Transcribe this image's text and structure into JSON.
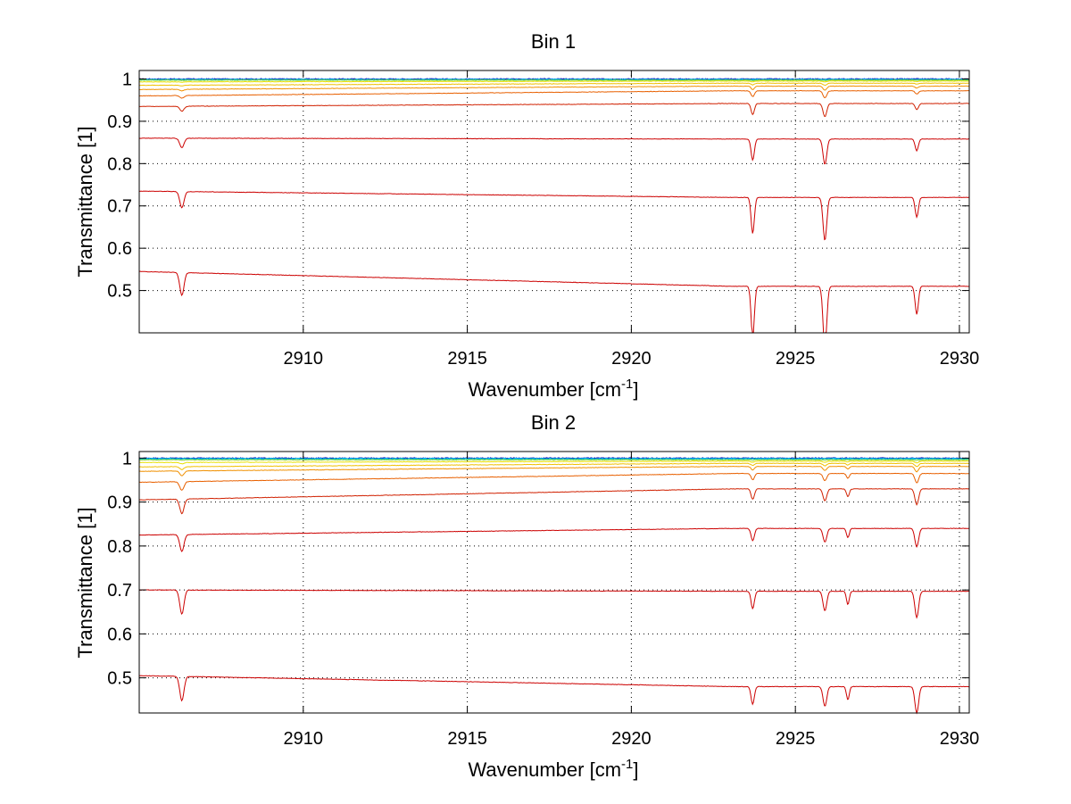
{
  "chart_data": [
    {
      "type": "line",
      "title": "Bin 1",
      "xlabel": "Wavenumber [cm",
      "xlabel_sup": "-1",
      "xlabel_end": "]",
      "ylabel": "Transmittance [1]",
      "xlim": [
        2905.0,
        2930.3
      ],
      "ylim": [
        0.4,
        1.02
      ],
      "xticks": [
        2910,
        2915,
        2920,
        2925,
        2930
      ],
      "xtick_labels": [
        "2910",
        "2915",
        "2920",
        "2925",
        "2930"
      ],
      "yticks": [
        0.5,
        0.6,
        0.7,
        0.8,
        0.9,
        1.0
      ],
      "ytick_labels": [
        "0.5",
        "0.6",
        "0.7",
        "0.8",
        "0.9",
        "1"
      ],
      "grid": true,
      "series": [
        {
          "color": "#0000aa",
          "baseline": 1.0,
          "depth": 0.0,
          "start": 1.0,
          "noise": 0.002
        },
        {
          "color": "#00a0ff",
          "baseline": 0.999,
          "depth": 0.0,
          "start": 0.999,
          "noise": 0.002
        },
        {
          "color": "#00c8c8",
          "baseline": 0.998,
          "depth": 0.0,
          "start": 0.998,
          "noise": 0.002
        },
        {
          "color": "#88d040",
          "baseline": 0.997,
          "depth": 0.001,
          "start": 0.997,
          "noise": 0.0015
        },
        {
          "color": "#e8e000",
          "baseline": 0.995,
          "depth": 0.002,
          "start": 0.993,
          "noise": 0.001
        },
        {
          "color": "#f0c000",
          "baseline": 0.99,
          "depth": 0.004,
          "start": 0.985,
          "noise": 0.001
        },
        {
          "color": "#f09000",
          "baseline": 0.983,
          "depth": 0.008,
          "start": 0.975,
          "noise": 0.001
        },
        {
          "color": "#e86000",
          "baseline": 0.972,
          "depth": 0.014,
          "start": 0.96,
          "noise": 0.001
        },
        {
          "color": "#d02000",
          "baseline": 0.942,
          "depth": 0.026,
          "start": 0.935,
          "noise": 0.001
        },
        {
          "color": "#cc0000",
          "baseline": 0.858,
          "depth": 0.05,
          "start": 0.86,
          "noise": 0.001
        },
        {
          "color": "#cc0000",
          "baseline": 0.72,
          "depth": 0.085,
          "start": 0.735,
          "noise": 0.001
        },
        {
          "color": "#cc0000",
          "baseline": 0.51,
          "depth": 0.12,
          "start": 0.545,
          "noise": 0.001
        }
      ],
      "lines_dips": [
        {
          "x": 2906.3,
          "w": 0.09,
          "s": 0.45
        },
        {
          "x": 2923.7,
          "w": 0.07,
          "s": 1.0
        },
        {
          "x": 2925.9,
          "w": 0.08,
          "s": 1.2
        },
        {
          "x": 2928.7,
          "w": 0.07,
          "s": 0.55
        }
      ]
    },
    {
      "type": "line",
      "title": "Bin 2",
      "xlabel": "Wavenumber [cm",
      "xlabel_sup": "-1",
      "xlabel_end": "]",
      "ylabel": "Transmittance [1]",
      "xlim": [
        2905.0,
        2930.3
      ],
      "ylim": [
        0.42,
        1.015
      ],
      "xticks": [
        2910,
        2915,
        2920,
        2925,
        2930
      ],
      "xtick_labels": [
        "2910",
        "2915",
        "2920",
        "2925",
        "2930"
      ],
      "yticks": [
        0.5,
        0.6,
        0.7,
        0.8,
        0.9,
        1.0
      ],
      "ytick_labels": [
        "0.5",
        "0.6",
        "0.7",
        "0.8",
        "0.9",
        "1"
      ],
      "grid": true,
      "series": [
        {
          "color": "#0000aa",
          "baseline": 1.0,
          "depth": 0.0,
          "start": 1.0,
          "noise": 0.002
        },
        {
          "color": "#00a0ff",
          "baseline": 0.999,
          "depth": 0.0,
          "start": 0.999,
          "noise": 0.002
        },
        {
          "color": "#00c8c8",
          "baseline": 0.998,
          "depth": 0.0,
          "start": 0.998,
          "noise": 0.002
        },
        {
          "color": "#88d040",
          "baseline": 0.996,
          "depth": 0.001,
          "start": 0.996,
          "noise": 0.0015
        },
        {
          "color": "#e8e000",
          "baseline": 0.993,
          "depth": 0.003,
          "start": 0.99,
          "noise": 0.001
        },
        {
          "color": "#f0c000",
          "baseline": 0.988,
          "depth": 0.006,
          "start": 0.98,
          "noise": 0.001
        },
        {
          "color": "#f09000",
          "baseline": 0.981,
          "depth": 0.01,
          "start": 0.97,
          "noise": 0.001
        },
        {
          "color": "#e86000",
          "baseline": 0.965,
          "depth": 0.018,
          "start": 0.945,
          "noise": 0.001
        },
        {
          "color": "#d02000",
          "baseline": 0.93,
          "depth": 0.03,
          "start": 0.905,
          "noise": 0.001
        },
        {
          "color": "#cc0000",
          "baseline": 0.84,
          "depth": 0.035,
          "start": 0.825,
          "noise": 0.001
        },
        {
          "color": "#cc0000",
          "baseline": 0.697,
          "depth": 0.05,
          "start": 0.7,
          "noise": 0.001
        },
        {
          "color": "#cc0000",
          "baseline": 0.48,
          "depth": 0.05,
          "start": 0.505,
          "noise": 0.001
        }
      ],
      "lines_dips": [
        {
          "x": 2906.3,
          "w": 0.09,
          "s": 1.1
        },
        {
          "x": 2923.7,
          "w": 0.07,
          "s": 0.8
        },
        {
          "x": 2925.9,
          "w": 0.08,
          "s": 0.9
        },
        {
          "x": 2926.6,
          "w": 0.06,
          "s": 0.6
        },
        {
          "x": 2928.7,
          "w": 0.08,
          "s": 1.2
        }
      ]
    }
  ]
}
